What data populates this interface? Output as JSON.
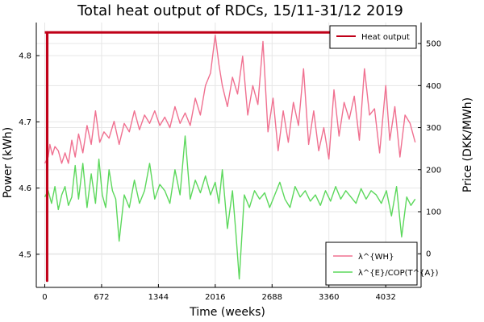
{
  "chart_data": {
    "type": "line",
    "title": "Total heat output of RDCs, 15/11-31/12 2019",
    "xlabel": "Time (weeks)",
    "ylabel_left": "Power (kWh)",
    "ylabel_right": "Price (DKK/MWh)",
    "xlim": [
      -100,
      4450
    ],
    "ylim_left": [
      4.45,
      4.85
    ],
    "ylim_right": [
      -80,
      550
    ],
    "x_ticks": [
      0,
      672,
      1344,
      2016,
      2688,
      3360,
      4032
    ],
    "y_ticks_left": [
      4.5,
      4.6,
      4.7,
      4.8
    ],
    "y_ticks_right": [
      0,
      100,
      200,
      300,
      400,
      500
    ],
    "grid": true,
    "legend_top": {
      "position": "top-right",
      "entries": [
        "Heat output"
      ]
    },
    "legend_bottom": {
      "position": "bottom-right",
      "entries": [
        "λ^{WH}",
        "λ^{E}/COP(T^{A})"
      ]
    },
    "series": [
      {
        "name": "Heat output",
        "axis": "left",
        "color": "#c00018",
        "x": [
          0,
          0,
          28,
          28,
          30,
          4380
        ],
        "y": [
          4.835,
          4.835,
          4.835,
          4.46,
          4.835,
          4.835
        ]
      },
      {
        "name": "λ^{WH}",
        "axis": "right",
        "color": "#f07090",
        "x": [
          0,
          40,
          60,
          90,
          120,
          160,
          200,
          240,
          280,
          320,
          360,
          400,
          450,
          500,
          550,
          600,
          650,
          700,
          760,
          820,
          880,
          940,
          1000,
          1060,
          1120,
          1180,
          1240,
          1300,
          1360,
          1420,
          1480,
          1540,
          1600,
          1660,
          1720,
          1780,
          1840,
          1900,
          1960,
          2016,
          2060,
          2100,
          2160,
          2220,
          2280,
          2340,
          2400,
          2460,
          2520,
          2580,
          2640,
          2700,
          2760,
          2820,
          2880,
          2940,
          3000,
          3060,
          3120,
          3180,
          3240,
          3300,
          3360,
          3420,
          3480,
          3540,
          3600,
          3660,
          3720,
          3780,
          3840,
          3900,
          3960,
          4032,
          4080,
          4140,
          4200,
          4260,
          4320,
          4380
        ],
        "y": [
          215,
          230,
          260,
          235,
          255,
          245,
          215,
          240,
          215,
          270,
          230,
          285,
          240,
          305,
          260,
          340,
          265,
          290,
          275,
          315,
          260,
          310,
          290,
          340,
          295,
          330,
          310,
          340,
          305,
          325,
          300,
          350,
          310,
          335,
          305,
          370,
          330,
          400,
          430,
          520,
          450,
          400,
          350,
          420,
          380,
          470,
          330,
          400,
          355,
          505,
          290,
          370,
          245,
          340,
          265,
          360,
          305,
          440,
          260,
          340,
          245,
          300,
          225,
          390,
          280,
          360,
          320,
          375,
          270,
          440,
          330,
          345,
          240,
          400,
          270,
          350,
          230,
          330,
          310,
          265
        ]
      },
      {
        "name": "λ^{E}/COP(T^{A})",
        "axis": "right",
        "color": "#5cd85c",
        "x": [
          0,
          40,
          80,
          120,
          160,
          200,
          240,
          280,
          320,
          360,
          400,
          450,
          500,
          550,
          600,
          640,
          680,
          720,
          760,
          800,
          840,
          880,
          940,
          1000,
          1060,
          1120,
          1180,
          1240,
          1300,
          1360,
          1420,
          1480,
          1540,
          1600,
          1660,
          1720,
          1780,
          1840,
          1900,
          1960,
          2016,
          2060,
          2100,
          2160,
          2220,
          2260,
          2300,
          2360,
          2420,
          2480,
          2540,
          2600,
          2660,
          2720,
          2780,
          2840,
          2900,
          2960,
          3020,
          3080,
          3140,
          3200,
          3260,
          3320,
          3380,
          3440,
          3500,
          3560,
          3620,
          3680,
          3740,
          3800,
          3860,
          3920,
          3980,
          4040,
          4100,
          4160,
          4220,
          4280,
          4330,
          4380
        ],
        "y": [
          135,
          150,
          120,
          160,
          105,
          140,
          160,
          115,
          135,
          210,
          130,
          215,
          110,
          190,
          120,
          225,
          140,
          110,
          200,
          150,
          130,
          30,
          140,
          110,
          175,
          120,
          150,
          215,
          130,
          165,
          150,
          120,
          200,
          140,
          280,
          130,
          175,
          145,
          185,
          140,
          170,
          120,
          200,
          60,
          150,
          50,
          -60,
          140,
          110,
          150,
          130,
          145,
          110,
          140,
          170,
          130,
          110,
          160,
          135,
          150,
          125,
          140,
          115,
          150,
          125,
          160,
          130,
          150,
          135,
          120,
          155,
          130,
          150,
          140,
          120,
          150,
          90,
          160,
          40,
          135,
          115,
          130
        ]
      }
    ]
  }
}
